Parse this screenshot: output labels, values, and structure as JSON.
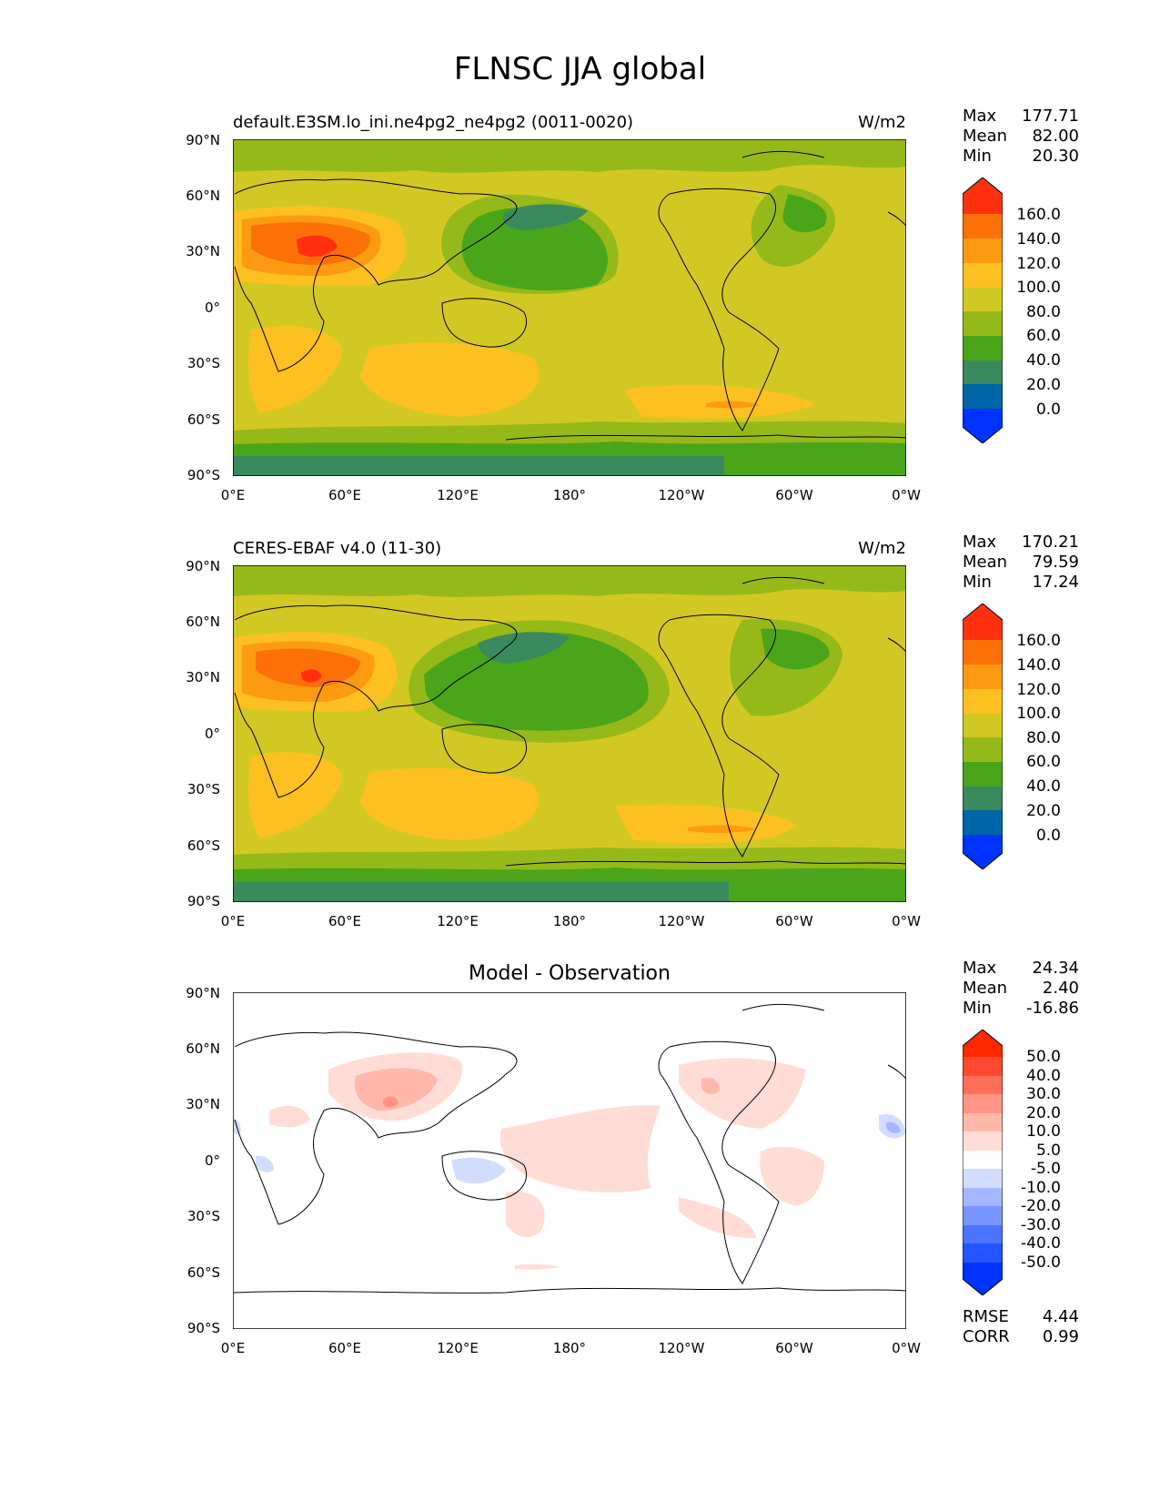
{
  "figure": {
    "title": "FLNSC JJA global"
  },
  "axes": {
    "y_ticks": [
      "90°N",
      "60°N",
      "30°N",
      "0°",
      "30°S",
      "60°S",
      "90°S"
    ],
    "x_ticks": [
      "0°E",
      "60°E",
      "120°E",
      "180°",
      "120°W",
      "60°W",
      "0°W"
    ]
  },
  "panels": [
    {
      "left_title": "default.E3SM.lo_ini.ne4pg2_ne4pg2 (0011-0020)",
      "units": "W/m2",
      "stats": {
        "max_label": "Max",
        "max": "177.71",
        "mean_label": "Mean",
        "mean": "82.00",
        "min_label": "Min",
        "min": "20.30"
      },
      "colorbar_labels": [
        "160.0",
        "140.0",
        "120.0",
        "100.0",
        "80.0",
        "60.0",
        "40.0",
        "20.0",
        "0.0"
      ]
    },
    {
      "left_title": "CERES-EBAF v4.0 (11-30)",
      "units": "W/m2",
      "stats": {
        "max_label": "Max",
        "max": "170.21",
        "mean_label": "Mean",
        "mean": "79.59",
        "min_label": "Min",
        "min": "17.24"
      },
      "colorbar_labels": [
        "160.0",
        "140.0",
        "120.0",
        "100.0",
        "80.0",
        "60.0",
        "40.0",
        "20.0",
        "0.0"
      ]
    },
    {
      "center_title": "Model - Observation",
      "stats": {
        "max_label": "Max",
        "max": "24.34",
        "mean_label": "Mean",
        "mean": "2.40",
        "min_label": "Min",
        "min": "-16.86"
      },
      "colorbar_labels": [
        "50.0",
        "40.0",
        "30.0",
        "20.0",
        "10.0",
        "5.0",
        "-5.0",
        "-10.0",
        "-20.0",
        "-30.0",
        "-40.0",
        "-50.0"
      ],
      "metrics": {
        "rmse_label": "RMSE",
        "rmse": "4.44",
        "corr_label": "CORR",
        "corr": "0.99"
      }
    }
  ],
  "colors": {
    "abs_scale": [
      "#0033ff",
      "#0066a8",
      "#3a8a5e",
      "#4aa51a",
      "#96b91a",
      "#d2c824",
      "#fcc020",
      "#fc9a12",
      "#fc7008",
      "#ff3010"
    ],
    "diff_scale": [
      "#0033ff",
      "#2255ff",
      "#4d74ff",
      "#7996ff",
      "#a4b6ff",
      "#d2dcff",
      "#ffffff",
      "#ffdcd6",
      "#ffb8aa",
      "#ff9484",
      "#ff6e58",
      "#ff4a30",
      "#ff2800"
    ]
  }
}
